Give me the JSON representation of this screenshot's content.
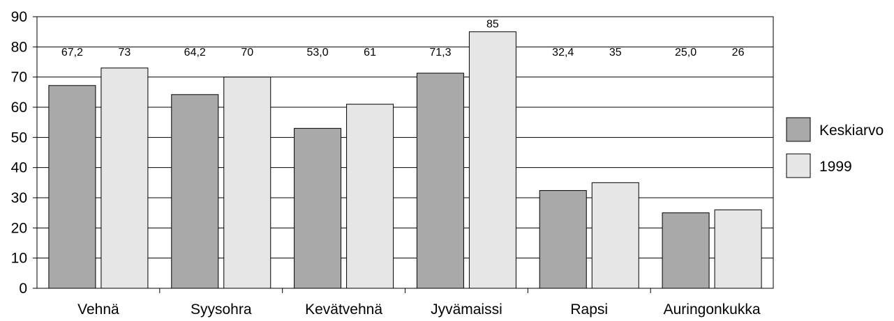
{
  "chart_data": {
    "type": "bar",
    "categories": [
      "Vehnä",
      "Syysohra",
      "Kevätvehnä",
      "Jyvämaissi",
      "Rapsi",
      "Auringonkukka"
    ],
    "series": [
      {
        "name": "Keskiarvo",
        "values": [
          67.2,
          64.2,
          53.0,
          71.3,
          32.4,
          25.0
        ],
        "labels": [
          "67,2",
          "64,2",
          "53,0",
          "71,3",
          "32,4",
          "25,0"
        ],
        "color": "#a9a9a9"
      },
      {
        "name": "1999",
        "values": [
          73,
          70,
          61,
          85,
          35,
          26
        ],
        "labels": [
          "73",
          "70",
          "61",
          "85",
          "35",
          "26"
        ],
        "color": "#e6e6e6"
      }
    ],
    "yticks": [
      "0",
      "10",
      "20",
      "30",
      "40",
      "50",
      "60",
      "70",
      "80",
      "90"
    ],
    "ylim": [
      0,
      90
    ],
    "grid": true,
    "legend": "right"
  }
}
